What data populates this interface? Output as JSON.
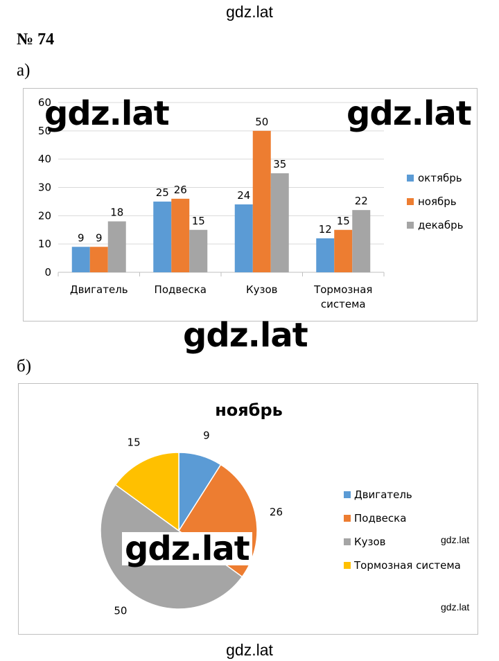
{
  "site": {
    "top_label": "gdz.lat",
    "bottom_label": "gdz.lat"
  },
  "task": {
    "number": "№ 74"
  },
  "part_a": {
    "label": "а)"
  },
  "part_b": {
    "label": "б)"
  },
  "watermarks": {
    "chart_a_left": "gdz.lat",
    "chart_a_right": "gdz.lat",
    "between": "gdz.lat",
    "pie_overlay": "gdz.lat",
    "pie_small_1": "gdz.lat",
    "pie_small_2": "gdz.lat"
  },
  "colors": {
    "octyabr": "#5b9bd5",
    "noyabr": "#ed7d31",
    "dekabr": "#a5a5a5",
    "tormoz": "#ffc000",
    "gridline": "#d9d9d9",
    "frame": "#bfbfbf"
  },
  "chart_data": [
    {
      "type": "bar",
      "title": "",
      "xlabel": "",
      "ylabel": "",
      "categories": [
        "Двигатель",
        "Подвеска",
        "Кузов",
        "Тормозная система"
      ],
      "category_lines": [
        [
          "Двигатель"
        ],
        [
          "Подвеска"
        ],
        [
          "Кузов"
        ],
        [
          "Тормозная",
          "система"
        ]
      ],
      "series": [
        {
          "name": "октябрь",
          "values": [
            9,
            25,
            24,
            12
          ],
          "color": "#5b9bd5"
        },
        {
          "name": "ноябрь",
          "values": [
            9,
            26,
            50,
            15
          ],
          "color": "#ed7d31"
        },
        {
          "name": "декабрь",
          "values": [
            18,
            15,
            35,
            22
          ],
          "color": "#a5a5a5"
        }
      ],
      "ylim": [
        0,
        60
      ],
      "yticks": [
        0,
        10,
        20,
        30,
        40,
        50,
        60
      ],
      "grid": true,
      "data_labels": true,
      "legend_position": "right"
    },
    {
      "type": "pie",
      "title": "ноябрь",
      "labels": [
        "Двигатель",
        "Подвеска",
        "Кузов",
        "Тормозная система"
      ],
      "values": [
        9,
        26,
        50,
        15
      ],
      "colors": [
        "#5b9bd5",
        "#ed7d31",
        "#a5a5a5",
        "#ffc000"
      ],
      "data_labels": true,
      "legend_position": "right"
    }
  ]
}
